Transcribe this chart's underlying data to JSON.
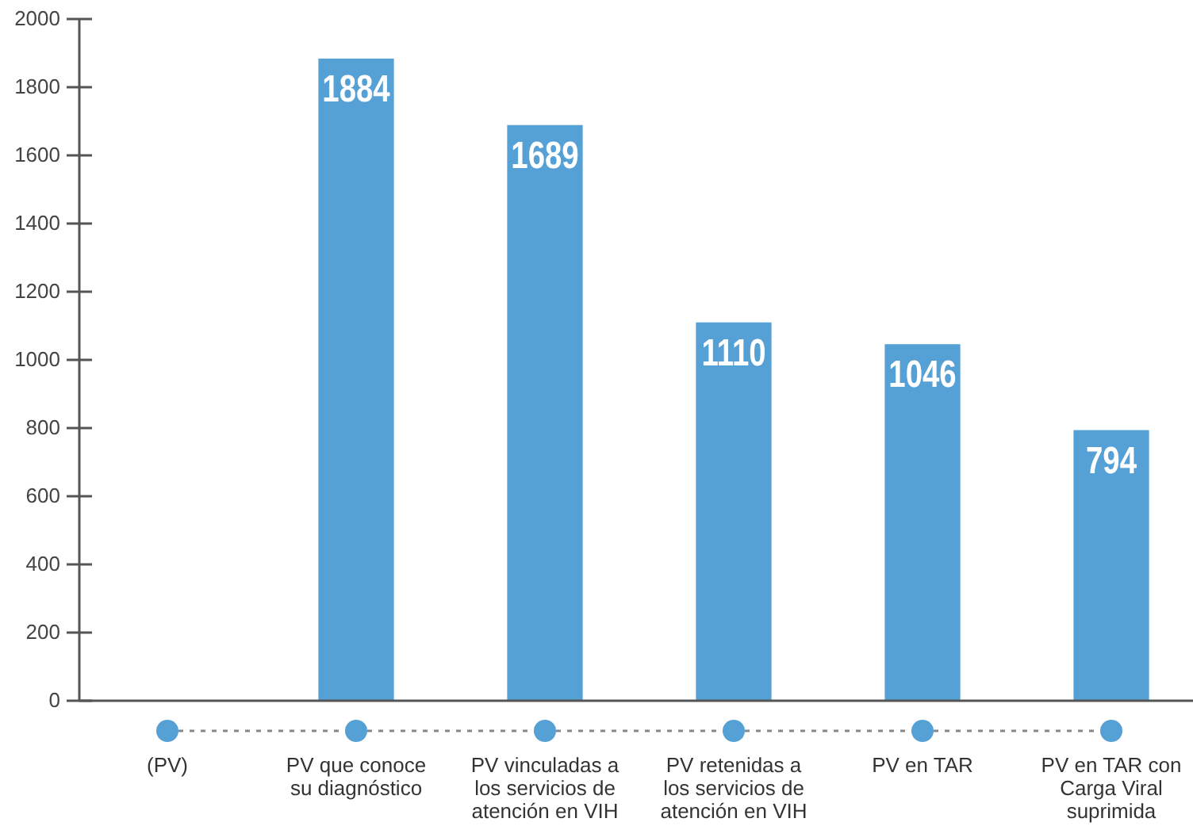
{
  "chart_data": {
    "type": "bar",
    "categories": [
      "(PV)",
      "PV que conoce su diagnóstico",
      "PV vinculadas a los servicios de atención en VIH",
      "PV retenidas a los servicios de atención en VIH",
      "PV en TAR",
      "PV en TAR con Carga Viral suprimida"
    ],
    "values": [
      null,
      1884,
      1689,
      1110,
      1046,
      794
    ],
    "color": "#55a0d4",
    "ylim": [
      0,
      2000
    ],
    "yticks": [
      0,
      200,
      400,
      600,
      800,
      1000,
      1200,
      1400,
      1600,
      1800,
      2000
    ],
    "data_labels": true
  }
}
